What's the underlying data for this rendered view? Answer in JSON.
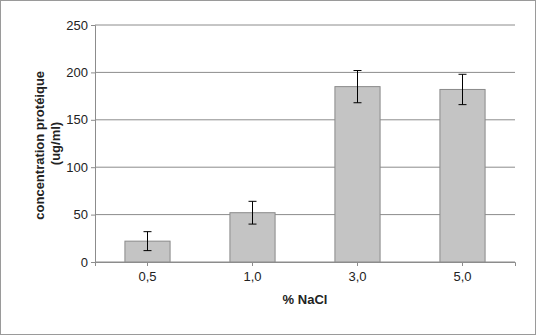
{
  "chart_data": {
    "type": "bar",
    "x_label": "% NaCl",
    "y_label": "concentration protéique (ug/ml)",
    "categories": [
      "0,5",
      "1,0",
      "3,0",
      "5,0"
    ],
    "values": [
      22,
      52,
      185,
      182
    ],
    "errors": [
      10,
      12,
      17,
      16
    ],
    "color": "#c4c4c4",
    "ylim": [
      0,
      250
    ],
    "yticks": [
      0,
      50,
      100,
      150,
      200,
      250
    ],
    "grid": true
  }
}
